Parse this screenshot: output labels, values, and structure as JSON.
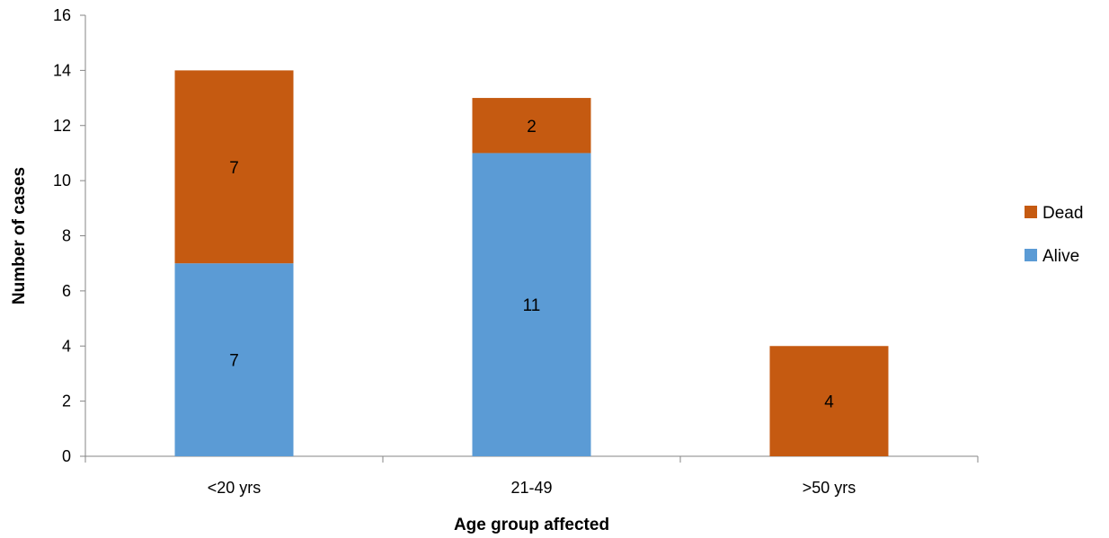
{
  "chart_data": {
    "type": "bar",
    "stacked": true,
    "title": "",
    "xlabel": "Age group affected",
    "ylabel": "Number of cases",
    "categories": [
      "<20 yrs",
      "21-49",
      ">50 yrs"
    ],
    "series": [
      {
        "name": "Alive",
        "values": [
          7,
          11,
          0
        ],
        "color": "#5B9BD5",
        "labels": [
          "7",
          "11",
          ""
        ]
      },
      {
        "name": "Dead",
        "values": [
          7,
          2,
          4
        ],
        "color": "#C55A11",
        "labels": [
          "7",
          "2",
          "4"
        ]
      }
    ],
    "ylim": [
      0,
      16
    ],
    "yticks": [
      0,
      2,
      4,
      6,
      8,
      10,
      12,
      14,
      16
    ],
    "grid": false,
    "legend": {
      "position": "right",
      "entries": [
        "Dead",
        "Alive"
      ]
    }
  }
}
